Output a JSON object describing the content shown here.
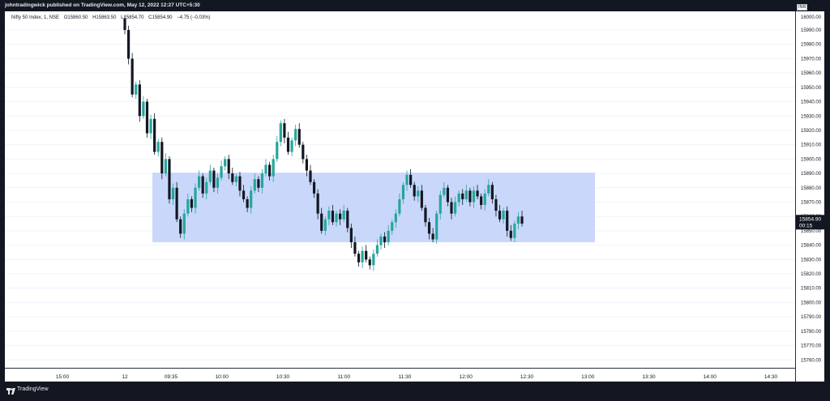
{
  "header": {
    "published_by": "johntradingwick published on TradingView.com, May 12, 2022 12:27 UTC+5:30"
  },
  "legend": {
    "symbol": "Nifty 50 Index, 1, NSE",
    "open": "O15860.50",
    "high": "H15863.50",
    "low": "L15854.70",
    "close": "C15854.90",
    "change": "−4.75 (−0.03%)"
  },
  "currency": "INR",
  "last_price": {
    "value": "15854.90",
    "countdown": "00:15"
  },
  "footer": {
    "brand": "TradingView"
  },
  "colors": {
    "up": "#26a69a",
    "down": "#131722",
    "zone": "#c9d7fb",
    "price_label": "#131722"
  },
  "chart_data": {
    "type": "candlestick",
    "title": "Nifty 50 Index, 1, NSE",
    "y_ticks": [
      15990,
      15980,
      15970,
      15960,
      15950,
      15940,
      15930,
      15920,
      15910,
      15900,
      15890,
      15880,
      15870,
      15860,
      15850,
      15840,
      15830,
      15820,
      15810,
      15800,
      15790,
      15780,
      15770,
      15760
    ],
    "y_tick_labels": [
      "15990.00",
      "15980.00",
      "15970.00",
      "15960.00",
      "15950.00",
      "15940.00",
      "15930.00",
      "15920.00",
      "15910.00",
      "15900.00",
      "15890.00",
      "15880.00",
      "15870.00",
      "15860.00",
      "15850.00",
      "15840.00",
      "15830.00",
      "15820.00",
      "15810.00",
      "15800.00",
      "15790.00",
      "15780.00",
      "15770.00",
      "15760.00"
    ],
    "y_top_label": "16000.00",
    "ylim": [
      15754.5,
      16003
    ],
    "x_ticks": [
      "15:00",
      "12",
      "09:35",
      "10:00",
      "10:30",
      "11:00",
      "11:30",
      "12:00",
      "12:30",
      "13:00",
      "13:30",
      "14:00",
      "14:30"
    ],
    "zone": {
      "y_low": 15842,
      "y_high": 15890.5
    },
    "price_path": [
      [
        15998,
        15990
      ],
      [
        15990,
        15970
      ],
      [
        15970,
        15945
      ],
      [
        15945,
        15952
      ],
      [
        15952,
        15930
      ],
      [
        15930,
        15940
      ],
      [
        15940,
        15918
      ],
      [
        15918,
        15928
      ],
      [
        15928,
        15905
      ],
      [
        15905,
        15912
      ],
      [
        15912,
        15890
      ],
      [
        15890,
        15900
      ],
      [
        15900,
        15872
      ],
      [
        15872,
        15880
      ],
      [
        15880,
        15858
      ],
      [
        15858,
        15848
      ],
      [
        15848,
        15862
      ],
      [
        15862,
        15872
      ],
      [
        15872,
        15866
      ],
      [
        15866,
        15880
      ],
      [
        15880,
        15888
      ],
      [
        15888,
        15876
      ],
      [
        15876,
        15884
      ],
      [
        15884,
        15892
      ],
      [
        15892,
        15880
      ],
      [
        15880,
        15887
      ],
      [
        15887,
        15895
      ],
      [
        15895,
        15900
      ],
      [
        15900,
        15890
      ],
      [
        15890,
        15884
      ],
      [
        15884,
        15888
      ],
      [
        15888,
        15878
      ],
      [
        15878,
        15872
      ],
      [
        15872,
        15866
      ],
      [
        15866,
        15878
      ],
      [
        15878,
        15886
      ],
      [
        15886,
        15880
      ],
      [
        15880,
        15890
      ],
      [
        15890,
        15896
      ],
      [
        15896,
        15888
      ],
      [
        15888,
        15900
      ],
      [
        15900,
        15912
      ],
      [
        15912,
        15925
      ],
      [
        15925,
        15915
      ],
      [
        15915,
        15905
      ],
      [
        15905,
        15913
      ],
      [
        15913,
        15921
      ],
      [
        15921,
        15910
      ],
      [
        15910,
        15900
      ],
      [
        15900,
        15892
      ],
      [
        15892,
        15884
      ],
      [
        15884,
        15876
      ],
      [
        15876,
        15862
      ],
      [
        15862,
        15850
      ],
      [
        15850,
        15858
      ],
      [
        15858,
        15864
      ],
      [
        15864,
        15856
      ],
      [
        15856,
        15862
      ],
      [
        15862,
        15858
      ],
      [
        15858,
        15864
      ],
      [
        15864,
        15852
      ],
      [
        15852,
        15842
      ],
      [
        15842,
        15834
      ],
      [
        15834,
        15828
      ],
      [
        15828,
        15836
      ],
      [
        15836,
        15830
      ],
      [
        15830,
        15826
      ],
      [
        15826,
        15834
      ],
      [
        15834,
        15840
      ],
      [
        15840,
        15846
      ],
      [
        15846,
        15842
      ],
      [
        15842,
        15850
      ],
      [
        15850,
        15856
      ],
      [
        15856,
        15862
      ],
      [
        15862,
        15872
      ],
      [
        15872,
        15882
      ],
      [
        15882,
        15889
      ],
      [
        15889,
        15882
      ],
      [
        15882,
        15874
      ],
      [
        15874,
        15878
      ],
      [
        15878,
        15866
      ],
      [
        15866,
        15856
      ],
      [
        15856,
        15848
      ],
      [
        15848,
        15844
      ],
      [
        15844,
        15862
      ],
      [
        15862,
        15875
      ],
      [
        15875,
        15880
      ],
      [
        15880,
        15870
      ],
      [
        15870,
        15862
      ],
      [
        15862,
        15870
      ],
      [
        15870,
        15876
      ],
      [
        15876,
        15872
      ],
      [
        15872,
        15878
      ],
      [
        15878,
        15870
      ],
      [
        15870,
        15878
      ],
      [
        15878,
        15874
      ],
      [
        15874,
        15868
      ],
      [
        15868,
        15876
      ],
      [
        15876,
        15882
      ],
      [
        15882,
        15872
      ],
      [
        15872,
        15864
      ],
      [
        15864,
        15858
      ],
      [
        15858,
        15864
      ],
      [
        15864,
        15850
      ],
      [
        15850,
        15845
      ],
      [
        15845,
        15855
      ],
      [
        15855,
        15860
      ],
      [
        15860,
        15855
      ]
    ]
  }
}
